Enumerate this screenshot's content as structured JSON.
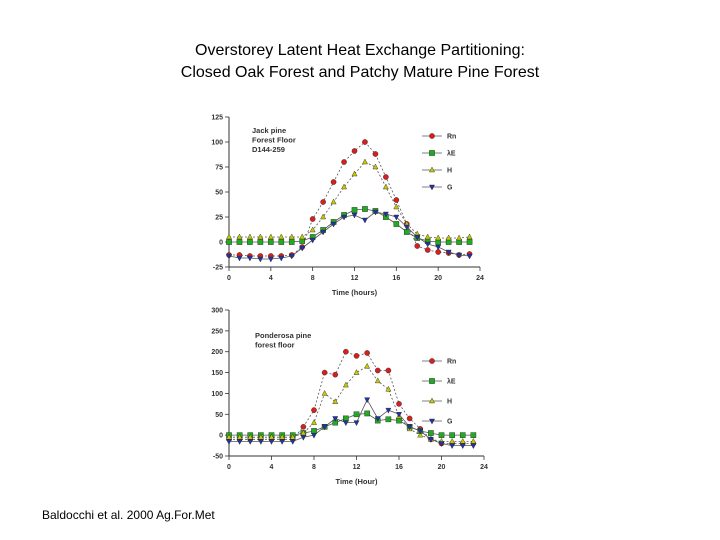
{
  "slide": {
    "title_line1": "Overstorey Latent Heat Exchange Partitioning:",
    "title_line2": "Closed Oak Forest and Patchy Mature Pine Forest",
    "citation": "Baldocchi et al. 2000 Ag.For.Met"
  },
  "chart_data": [
    {
      "type": "line",
      "annotation": [
        "Jack pine",
        "Forest Floor",
        "D144-259"
      ],
      "xlabel": "Time (hours)",
      "ylabel": "",
      "xlim": [
        0,
        24
      ],
      "ylim": [
        -25,
        125
      ],
      "xticks": [
        0,
        4,
        8,
        12,
        16,
        20,
        24
      ],
      "yticks": [
        -25,
        0,
        25,
        50,
        75,
        100,
        125
      ],
      "grid": false,
      "legend_position": "right",
      "x": [
        0,
        1,
        2,
        3,
        4,
        5,
        6,
        7,
        8,
        9,
        10,
        11,
        12,
        13,
        14,
        15,
        16,
        17,
        18,
        19,
        20,
        21,
        22,
        23
      ],
      "series": [
        {
          "name": "Rn",
          "color": "#d62020",
          "marker": "circle",
          "dash": "2,2",
          "values": [
            -13,
            -13,
            -14,
            -14,
            -14,
            -14,
            -13,
            -5,
            23,
            40,
            60,
            80,
            91,
            100,
            88,
            65,
            42,
            18,
            -4,
            -8,
            -10,
            -11,
            -13,
            -12
          ]
        },
        {
          "name": "λE",
          "color": "#22aa22",
          "marker": "square",
          "dash": "",
          "values": [
            0,
            0,
            0,
            0,
            0,
            0,
            0,
            1,
            5,
            12,
            20,
            27,
            32,
            33,
            31,
            25,
            18,
            10,
            4,
            1,
            0,
            0,
            0,
            0
          ]
        },
        {
          "name": "H",
          "color": "#c8c800",
          "marker": "triangle-up",
          "dash": "2,2",
          "values": [
            5,
            5,
            5,
            5,
            5,
            5,
            5,
            5,
            12,
            25,
            40,
            55,
            68,
            80,
            75,
            55,
            35,
            18,
            8,
            5,
            4,
            4,
            4,
            5
          ]
        },
        {
          "name": "G",
          "color": "#2233aa",
          "marker": "triangle-down",
          "dash": "",
          "values": [
            -14,
            -16,
            -16,
            -17,
            -17,
            -16,
            -14,
            -6,
            2,
            10,
            18,
            25,
            27,
            22,
            30,
            28,
            25,
            15,
            5,
            -2,
            -5,
            -10,
            -13,
            -14
          ]
        }
      ]
    },
    {
      "type": "line",
      "annotation": [
        "Ponderosa pine",
        "forest floor"
      ],
      "xlabel": "Time (Hour)",
      "ylabel": "",
      "xlim": [
        0,
        24
      ],
      "ylim": [
        -50,
        300
      ],
      "xticks": [
        0,
        4,
        8,
        12,
        16,
        20,
        24
      ],
      "yticks": [
        -50,
        0,
        50,
        100,
        150,
        200,
        250,
        300
      ],
      "grid": false,
      "legend_position": "right",
      "x": [
        0,
        1,
        2,
        3,
        4,
        5,
        6,
        7,
        8,
        9,
        10,
        11,
        12,
        13,
        14,
        15,
        16,
        17,
        18,
        19,
        20,
        21,
        22,
        23
      ],
      "series": [
        {
          "name": "Rn",
          "color": "#d62020",
          "marker": "circle",
          "dash": "2,2",
          "values": [
            -10,
            -10,
            -10,
            -10,
            -10,
            -10,
            -10,
            20,
            60,
            150,
            145,
            200,
            190,
            197,
            155,
            155,
            75,
            40,
            15,
            -10,
            -20,
            -20,
            -20,
            -20
          ]
        },
        {
          "name": "λE",
          "color": "#22aa22",
          "marker": "square",
          "dash": "",
          "values": [
            0,
            0,
            0,
            0,
            0,
            0,
            0,
            5,
            10,
            20,
            30,
            40,
            50,
            52,
            35,
            38,
            35,
            20,
            10,
            5,
            0,
            0,
            0,
            0
          ]
        },
        {
          "name": "H",
          "color": "#c8c800",
          "marker": "triangle-up",
          "dash": "2,2",
          "values": [
            -5,
            -5,
            -5,
            -5,
            -5,
            -5,
            -5,
            5,
            30,
            100,
            80,
            120,
            150,
            165,
            130,
            110,
            45,
            15,
            0,
            -10,
            -15,
            -15,
            -15,
            -15
          ]
        },
        {
          "name": "G",
          "color": "#2233aa",
          "marker": "triangle-down",
          "dash": "",
          "values": [
            -15,
            -15,
            -15,
            -15,
            -15,
            -15,
            -15,
            -5,
            0,
            20,
            40,
            30,
            30,
            85,
            40,
            60,
            50,
            20,
            10,
            -10,
            -20,
            -25,
            -25,
            -25
          ]
        }
      ]
    }
  ]
}
